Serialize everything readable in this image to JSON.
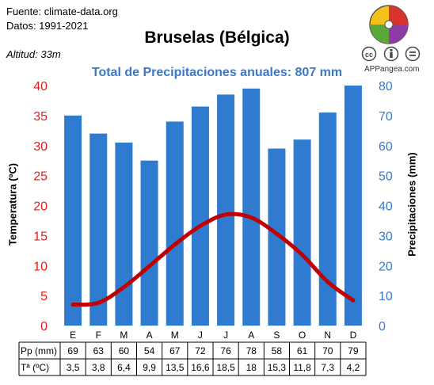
{
  "header": {
    "source": "Fuente: climate-data.org",
    "period": "Datos: 1991-2021",
    "altitude": "Altitud: 33m",
    "brand": "APPangea.com",
    "license_icons": [
      "creative-commons-icon",
      "attribution-icon",
      "no-derivatives-icon"
    ]
  },
  "chart_data": {
    "type": "bar",
    "title": "Bruselas (Bélgica)",
    "subtitle": "Total de Precipitaciones anuales: 807 mm",
    "categories": [
      "E",
      "F",
      "M",
      "A",
      "M",
      "J",
      "J",
      "A",
      "S",
      "O",
      "N",
      "D"
    ],
    "series": [
      {
        "name": "Pp (mm)",
        "type": "bar",
        "axis": "right",
        "color": "#2f7bd0",
        "values": [
          69,
          63,
          60,
          54,
          67,
          72,
          76,
          78,
          58,
          61,
          70,
          79
        ],
        "drawn_values": [
          70,
          64,
          61,
          55,
          68,
          73,
          77,
          79,
          59,
          62,
          71,
          80
        ]
      },
      {
        "name": "Tª (ºC)",
        "type": "line",
        "axis": "left",
        "color": "#c00000",
        "values": [
          3.5,
          3.8,
          6.4,
          9.9,
          13.5,
          16.6,
          18.5,
          18,
          15.3,
          11.8,
          7.3,
          4.2
        ],
        "labels": [
          "3,5",
          "3,8",
          "6,4",
          "9,9",
          "13,5",
          "16,6",
          "18,5",
          "18",
          "15,3",
          "11,8",
          "7,3",
          "4,2"
        ]
      }
    ],
    "ylabel_left": "Temperatura (ºC)",
    "ylabel_right": "Precipitaciones (mm)",
    "ylim_left": [
      0,
      40
    ],
    "yticks_left": [
      "0",
      "5",
      "10",
      "15",
      "20",
      "25",
      "30",
      "35",
      "40"
    ],
    "ylim_right": [
      0,
      80
    ],
    "yticks_right": [
      "0",
      "10",
      "20",
      "30",
      "40",
      "50",
      "60",
      "70",
      "80"
    ],
    "left_axis_color": "#e01e1e",
    "right_axis_color": "#3b78c8",
    "grid": false,
    "table_rows": [
      "Pp (mm)",
      "Tª (ºC)"
    ]
  }
}
